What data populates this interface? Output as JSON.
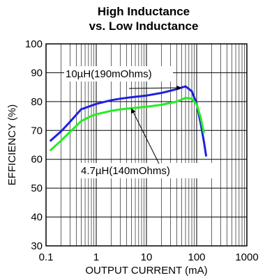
{
  "chart_data": {
    "type": "line",
    "title": "High Inductance",
    "subtitle": "vs. Low Inductance",
    "xlabel": "OUTPUT CURRENT (mA)",
    "ylabel": "EFFICIENCY (%)",
    "xscale": "log",
    "xlim": [
      0.1,
      1000
    ],
    "ylim": [
      30,
      100
    ],
    "x_ticks": [
      "0.1",
      "1",
      "10",
      "100",
      "1000"
    ],
    "y_ticks": [
      "30",
      "40",
      "50",
      "60",
      "70",
      "80",
      "90",
      "100"
    ],
    "grid": true,
    "colors": {
      "series_1": "#2020e0",
      "series_2": "#22ee22"
    },
    "series": [
      {
        "name": "10µH(190mOhms)",
        "color": "#2020e0",
        "x": [
          0.12,
          0.2,
          0.3,
          0.5,
          0.8,
          1,
          2,
          3,
          5,
          10,
          20,
          40,
          60,
          80,
          100,
          120,
          140,
          155
        ],
        "y": [
          66.3,
          69.7,
          73,
          77.3,
          78.6,
          79.2,
          80.5,
          81,
          81.5,
          82.1,
          83,
          84.3,
          85.3,
          83.6,
          79.3,
          72.5,
          66,
          61
        ]
      },
      {
        "name": "4.7µH(140mOhms)",
        "color": "#22ee22",
        "x": [
          0.12,
          0.2,
          0.3,
          0.5,
          0.8,
          1,
          2,
          3,
          5,
          10,
          20,
          40,
          60,
          80,
          100,
          120,
          140
        ],
        "y": [
          63,
          66.5,
          69.5,
          73.2,
          75,
          75.6,
          76.8,
          77.3,
          77.7,
          78.2,
          78.9,
          80,
          81.3,
          81,
          79,
          74.5,
          69
        ]
      }
    ],
    "annotations": [
      {
        "text": "10µH(190mOhms)",
        "point_x": 50,
        "point_y": 84.8
      },
      {
        "text": "4.7µH(140mOhms)",
        "point_x": 5,
        "point_y": 77.7
      }
    ]
  }
}
